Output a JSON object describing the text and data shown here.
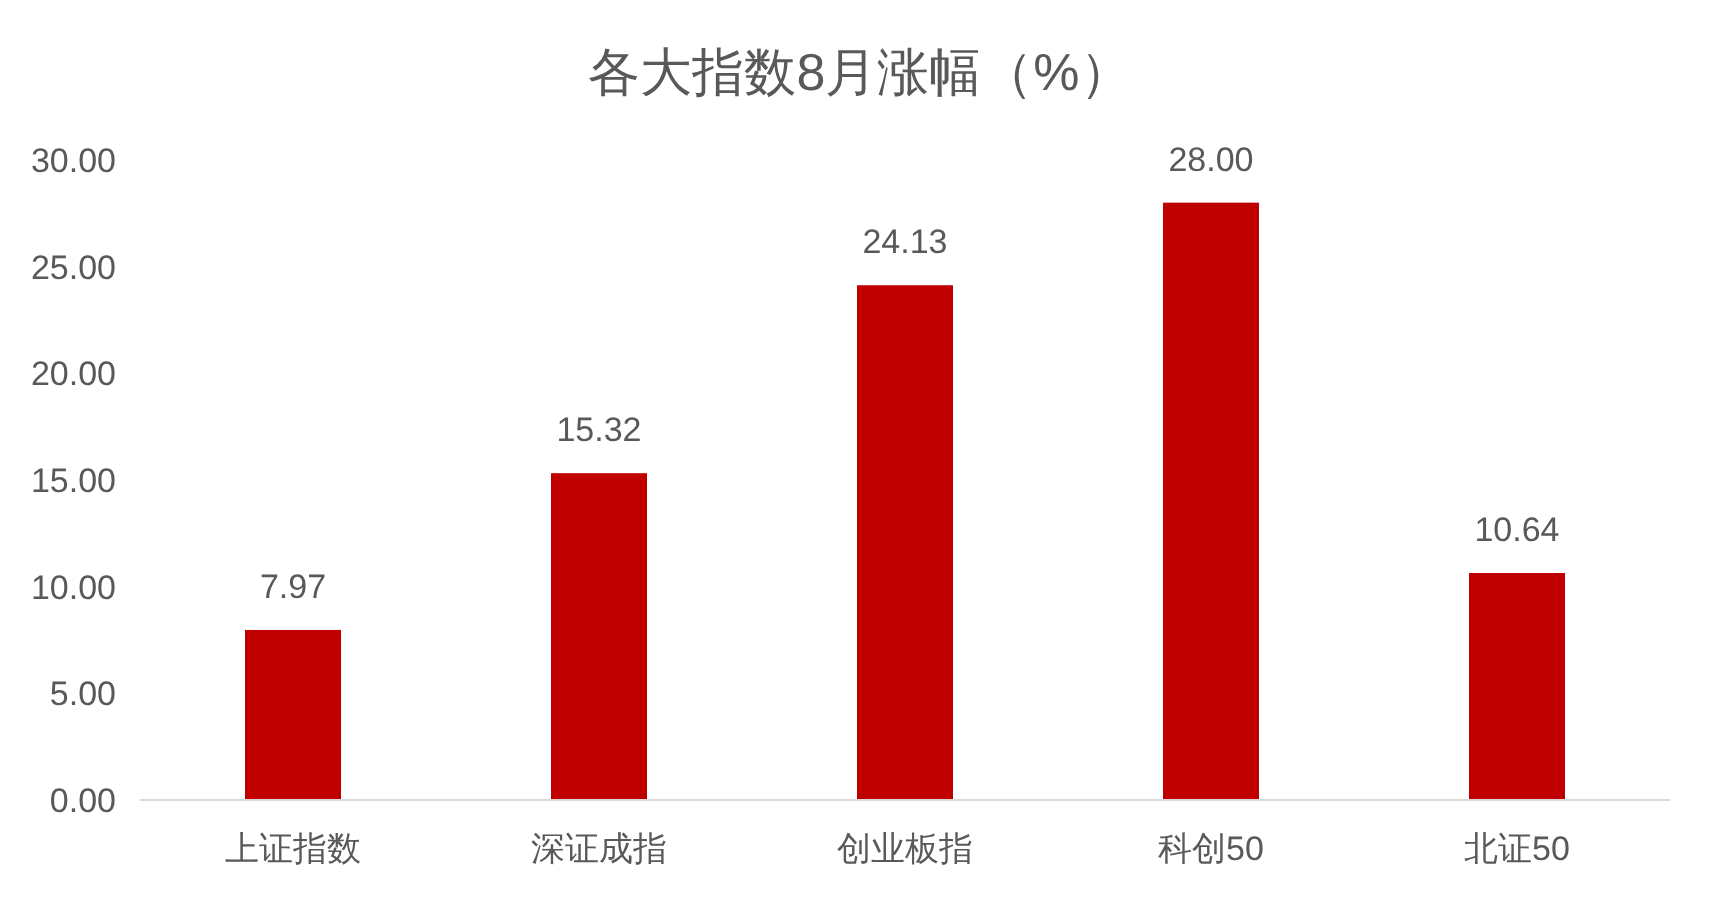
{
  "chart_data": {
    "type": "bar",
    "title": "各大指数8月涨幅（%）",
    "categories": [
      "上证指数",
      "深证成指",
      "创业板指",
      "科创50",
      "北证50"
    ],
    "values": [
      7.97,
      15.32,
      24.13,
      28.0,
      10.64
    ],
    "value_labels": [
      "7.97",
      "15.32",
      "24.13",
      "28.00",
      "10.64"
    ],
    "color": "#c00000",
    "ylim": [
      0,
      30
    ],
    "yticks": [
      {
        "value": 0,
        "label": "0.00"
      },
      {
        "value": 5,
        "label": "5.00"
      },
      {
        "value": 10,
        "label": "10.00"
      },
      {
        "value": 15,
        "label": "15.00"
      },
      {
        "value": 20,
        "label": "20.00"
      },
      {
        "value": 25,
        "label": "25.00"
      },
      {
        "value": 30,
        "label": "30.00"
      }
    ],
    "grid": false
  }
}
